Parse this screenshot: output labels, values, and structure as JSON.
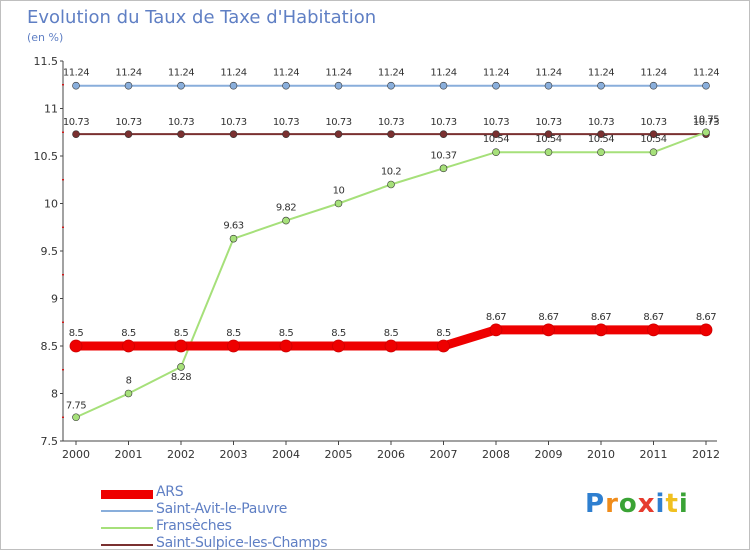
{
  "title": "Evolution du Taux de Taxe d'Habitation",
  "unit_label": "(en %)",
  "logo_text": "Proxiti",
  "chart_data": {
    "type": "line",
    "x": [
      "2000",
      "2001",
      "2002",
      "2003",
      "2004",
      "2005",
      "2006",
      "2007",
      "2008",
      "2009",
      "2010",
      "2011",
      "2012"
    ],
    "ylim": [
      7.5,
      11.5
    ],
    "yticks": [
      "7.5",
      "8",
      "8.5",
      "9",
      "9.5",
      "10",
      "10.5",
      "11",
      "11.5"
    ],
    "grid": false,
    "legend_position": "bottom",
    "series": [
      {
        "name": "ARS",
        "color": "#ee0000",
        "values": [
          8.5,
          8.5,
          8.5,
          8.5,
          8.5,
          8.5,
          8.5,
          8.5,
          8.67,
          8.67,
          8.67,
          8.67,
          8.67
        ],
        "labels": [
          "8.5",
          "8.5",
          "8.5",
          "8.5",
          "8.5",
          "8.5",
          "8.5",
          "8.5",
          "8.67",
          "8.67",
          "8.67",
          "8.67",
          "8.67"
        ]
      },
      {
        "name": "Saint-Avit-le-Pauvre",
        "color": "#89aedb",
        "values": [
          11.24,
          11.24,
          11.24,
          11.24,
          11.24,
          11.24,
          11.24,
          11.24,
          11.24,
          11.24,
          11.24,
          11.24,
          11.24
        ],
        "labels": [
          "11.24",
          "11.24",
          "11.24",
          "11.24",
          "11.24",
          "11.24",
          "11.24",
          "11.24",
          "11.24",
          "11.24",
          "11.24",
          "11.24",
          "11.24"
        ]
      },
      {
        "name": "Fransèches",
        "color": "#a6e07a",
        "values": [
          7.75,
          8,
          8.28,
          9.63,
          9.82,
          10,
          10.2,
          10.37,
          10.54,
          10.54,
          10.54,
          10.54,
          10.75
        ],
        "labels": [
          "7.75",
          "8",
          "8.28",
          "9.63",
          "9.82",
          "10",
          "10.2",
          "10.37",
          "10.54",
          "10.54",
          "10.54",
          "10.54",
          "10.75"
        ]
      },
      {
        "name": "Saint-Sulpice-les-Champs",
        "color": "#7a3030",
        "values": [
          10.73,
          10.73,
          10.73,
          10.73,
          10.73,
          10.73,
          10.73,
          10.73,
          10.73,
          10.73,
          10.73,
          10.73,
          10.73
        ],
        "labels": [
          "10.73",
          "10.73",
          "10.73",
          "10.73",
          "10.73",
          "10.73",
          "10.73",
          "10.73",
          "10.73",
          "10.73",
          "10.73",
          "10.73",
          "10.73"
        ]
      }
    ]
  }
}
